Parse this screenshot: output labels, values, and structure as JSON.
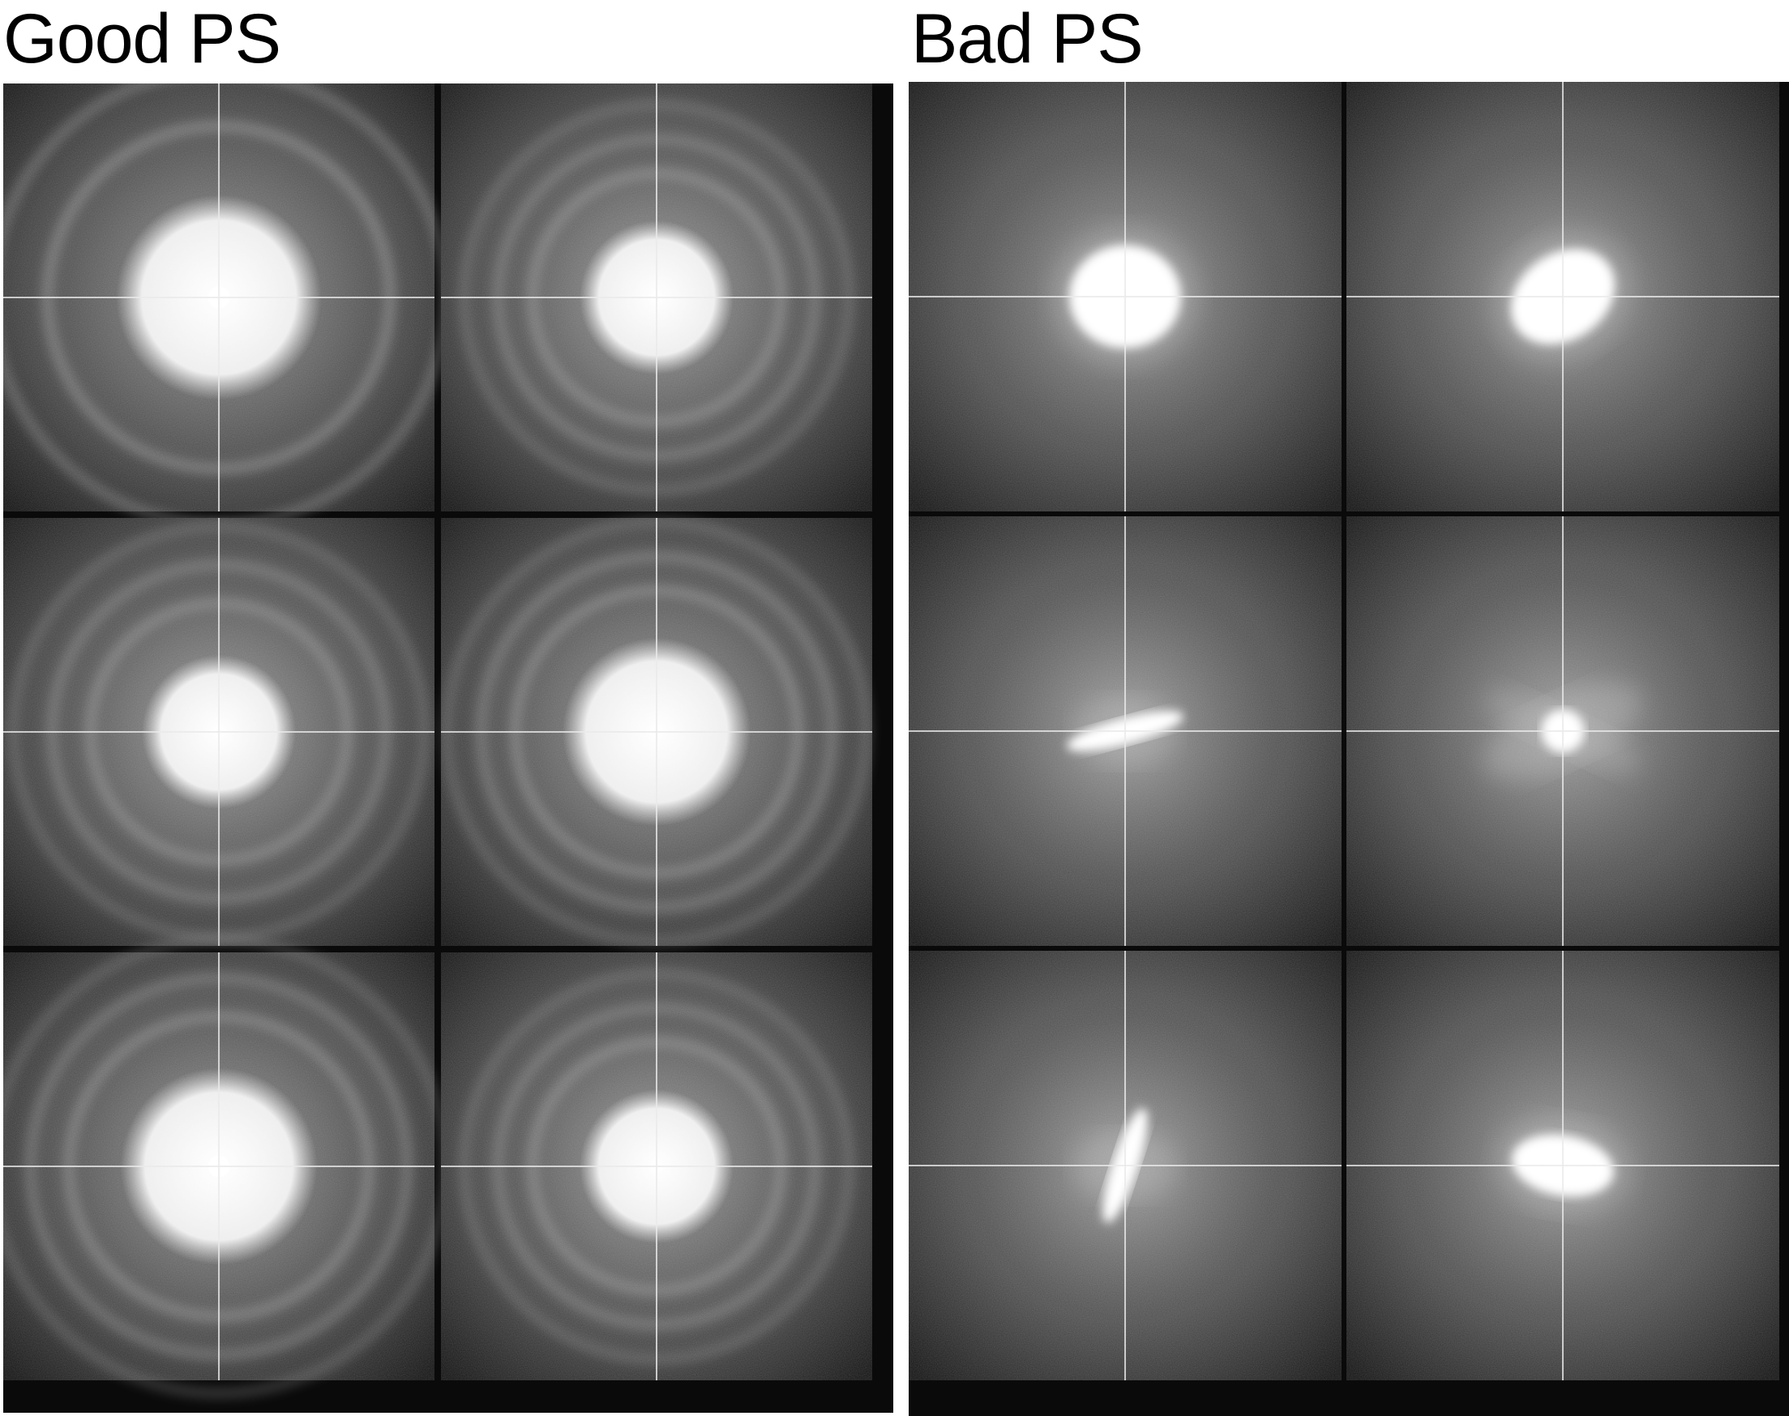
{
  "panels": [
    {
      "id": "good",
      "title": "Good PS",
      "tiles": [
        {
          "kind": "rings",
          "core": 0.24,
          "rings": 2,
          "ring_gap": 0.13,
          "center_dot": true
        },
        {
          "kind": "rings",
          "core": 0.18,
          "rings": 3,
          "ring_gap": 0.08,
          "center_dot": false
        },
        {
          "kind": "rings",
          "core": 0.18,
          "rings": 3,
          "ring_gap": 0.09,
          "center_dot": false
        },
        {
          "kind": "rings",
          "core": 0.22,
          "rings": 3,
          "ring_gap": 0.08,
          "center_dot": false
        },
        {
          "kind": "rings",
          "core": 0.23,
          "rings": 3,
          "ring_gap": 0.09,
          "center_dot": true
        },
        {
          "kind": "rings",
          "core": 0.18,
          "rings": 3,
          "ring_gap": 0.08,
          "center_dot": false
        }
      ]
    },
    {
      "id": "bad",
      "title": "Bad PS",
      "tiles": [
        {
          "kind": "blob",
          "dx": 0.0,
          "dy": 0.0,
          "rx": 0.13,
          "ry": 0.12,
          "rot": 0
        },
        {
          "kind": "blob",
          "dx": 0.0,
          "dy": 0.0,
          "rx": 0.13,
          "ry": 0.1,
          "rot": -35
        },
        {
          "kind": "streak",
          "dx": 0.0,
          "dy": 0.0,
          "rx": 0.2,
          "ry": 0.03,
          "rot": -15
        },
        {
          "kind": "star",
          "dx": 0.0,
          "dy": 0.0,
          "rx": 0.05,
          "ry": 0.05,
          "rot": 0
        },
        {
          "kind": "streak",
          "dx": 0.0,
          "dy": 0.0,
          "rx": 0.2,
          "ry": 0.03,
          "rot": -72
        },
        {
          "kind": "blob",
          "dx": 0.0,
          "dy": 0.0,
          "rx": 0.12,
          "ry": 0.07,
          "rot": 10
        }
      ]
    }
  ]
}
